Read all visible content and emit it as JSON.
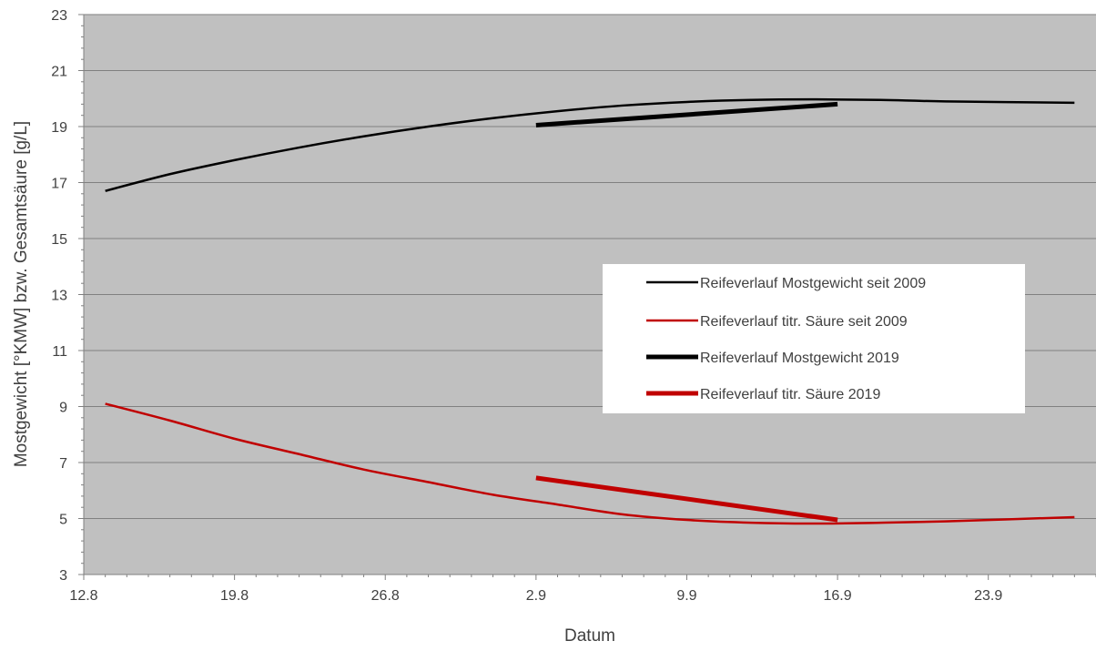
{
  "chart_data": {
    "type": "line",
    "xlabel": "Datum",
    "ylabel": "Mostgewicht [°KMW] bzw. Gesamtsäure [g/L]",
    "x_tick_labels": [
      "12.8",
      "19.8",
      "26.8",
      "2.9",
      "9.9",
      "16.9",
      "23.9"
    ],
    "y_tick_labels": [
      "3",
      "5",
      "7",
      "9",
      "11",
      "13",
      "15",
      "17",
      "19",
      "21",
      "23"
    ],
    "xlim": [
      0,
      47
    ],
    "ylim": [
      3,
      23
    ],
    "grid": "horizontal",
    "legend_position": "center-right",
    "x_unit_note": "day offset from 12.8",
    "series": [
      {
        "name": "Reifeverlauf Mostgewicht seit 2009",
        "color": "#000000",
        "style": "thin",
        "points": [
          [
            1,
            16.7
          ],
          [
            4,
            17.3
          ],
          [
            7,
            17.8
          ],
          [
            10,
            18.25
          ],
          [
            13,
            18.65
          ],
          [
            16,
            19.0
          ],
          [
            19,
            19.3
          ],
          [
            22,
            19.55
          ],
          [
            25,
            19.75
          ],
          [
            28,
            19.88
          ],
          [
            31,
            19.95
          ],
          [
            34,
            19.97
          ],
          [
            37,
            19.95
          ],
          [
            40,
            19.9
          ],
          [
            46,
            19.85
          ]
        ]
      },
      {
        "name": "Reifeverlauf titr. Säure seit 2009",
        "color": "#c00000",
        "style": "thin",
        "points": [
          [
            1,
            9.1
          ],
          [
            4,
            8.5
          ],
          [
            7,
            7.85
          ],
          [
            10,
            7.3
          ],
          [
            13,
            6.75
          ],
          [
            16,
            6.3
          ],
          [
            19,
            5.85
          ],
          [
            22,
            5.5
          ],
          [
            25,
            5.15
          ],
          [
            28,
            4.95
          ],
          [
            31,
            4.85
          ],
          [
            34,
            4.82
          ],
          [
            37,
            4.85
          ],
          [
            40,
            4.9
          ],
          [
            46,
            5.05
          ]
        ]
      },
      {
        "name": "Reifeverlauf Mostgewicht 2019",
        "color": "#000000",
        "style": "thick",
        "points": [
          [
            21,
            19.05
          ],
          [
            35,
            19.8
          ]
        ]
      },
      {
        "name": "Reifeverlauf titr. Säure 2019",
        "color": "#c00000",
        "style": "thick",
        "points": [
          [
            21,
            6.45
          ],
          [
            35,
            4.95
          ]
        ]
      }
    ]
  }
}
